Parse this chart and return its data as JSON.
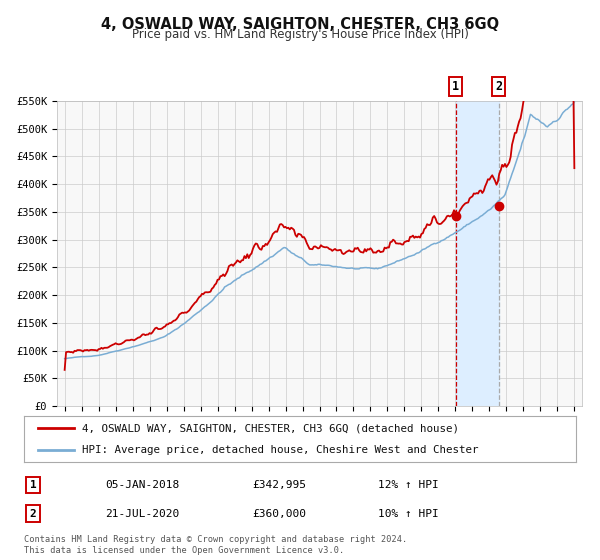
{
  "title": "4, OSWALD WAY, SAIGHTON, CHESTER, CH3 6GQ",
  "subtitle": "Price paid vs. HM Land Registry's House Price Index (HPI)",
  "legend_line1": "4, OSWALD WAY, SAIGHTON, CHESTER, CH3 6GQ (detached house)",
  "legend_line2": "HPI: Average price, detached house, Cheshire West and Chester",
  "sale1_date": "05-JAN-2018",
  "sale1_price": 342995,
  "sale1_hpi": "12% ↑ HPI",
  "sale2_date": "21-JUL-2020",
  "sale2_price": 360000,
  "sale2_hpi": "10% ↑ HPI",
  "footer1": "Contains HM Land Registry data © Crown copyright and database right 2024.",
  "footer2": "This data is licensed under the Open Government Licence v3.0.",
  "price_color": "#cc0000",
  "hpi_color": "#7aadd4",
  "marker_color": "#cc0000",
  "vline1_color": "#cc0000",
  "vline2_color": "#aaaaaa",
  "shade_color": "#ddeeff",
  "ylim": [
    0,
    550000
  ],
  "yticks": [
    0,
    50000,
    100000,
    150000,
    200000,
    250000,
    300000,
    350000,
    400000,
    450000,
    500000,
    550000
  ],
  "ytick_labels": [
    "£0",
    "£50K",
    "£100K",
    "£150K",
    "£200K",
    "£250K",
    "£300K",
    "£350K",
    "£400K",
    "£450K",
    "£500K",
    "£550K"
  ],
  "sale1_x": 2018.01,
  "sale2_x": 2020.54,
  "bg_color": "#ffffff",
  "plot_bg_color": "#f8f8f8"
}
